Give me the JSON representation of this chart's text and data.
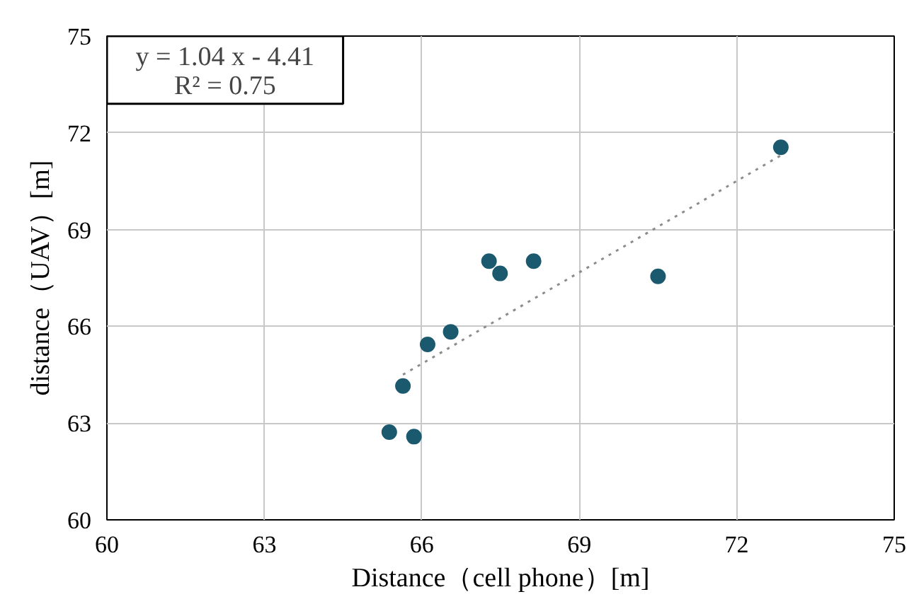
{
  "chart_data": {
    "type": "scatter",
    "xlabel": "Distance（cell phone）[m]",
    "ylabel": "distance（UAV）[m]",
    "annotations": [
      "y = 1.04 x - 4.41",
      "R² = 0.75"
    ],
    "xlim": [
      60,
      75
    ],
    "ylim": [
      60,
      75
    ],
    "xticks": [
      60,
      63,
      66,
      69,
      72,
      75
    ],
    "yticks": [
      60,
      63,
      66,
      69,
      72,
      75
    ],
    "grid": true,
    "series": [
      {
        "color": "#1b5a6e",
        "marker": "circle",
        "x": [
          65.38,
          65.85,
          65.64,
          66.11,
          66.55,
          67.28,
          67.49,
          68.13,
          70.5,
          72.84
        ],
        "values": [
          62.72,
          62.58,
          64.15,
          65.44,
          65.83,
          68.02,
          67.64,
          68.02,
          67.55,
          71.55
        ]
      },
      {
        "type": "line",
        "color": "#8c8c8c",
        "line_style": "dotted",
        "x": [
          65.64,
          72.84
        ],
        "values": [
          64.5,
          71.3
        ]
      }
    ]
  }
}
